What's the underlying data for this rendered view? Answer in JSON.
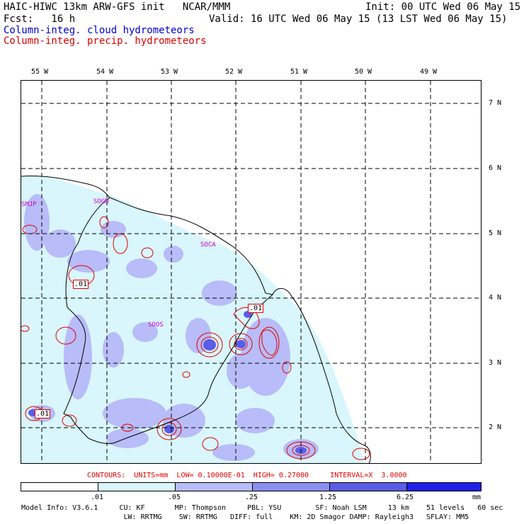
{
  "header": {
    "left_line1": "HAIC-HIWC 13km ARW-GFS init   NCAR/MMM",
    "left_line2": "Fcst:   16 h",
    "right_line1": "Init: 00 UTC Wed 06 May 15",
    "right_line2": "Valid: 16 UTC Wed 06 May 15 (13 LST Wed 06 May 15)"
  },
  "legend": {
    "cloud": "Column-integ. cloud hydrometeors",
    "precip": "Column-integ. precip. hydrometeors",
    "cloud_color": "#0000cc",
    "precip_color": "#e00000"
  },
  "map": {
    "lon_labels": [
      "55 W",
      "54 W",
      "53 W",
      "52 W",
      "51 W",
      "50 W",
      "49 W"
    ],
    "lat_labels": [
      "7 N",
      "6 N",
      "5 N",
      "4 N",
      "3 N",
      "2 N"
    ],
    "stations": [
      "SMJP",
      "SOGM",
      "SOCA",
      "SOOS"
    ],
    "station_color": "#cc00cc",
    "contour_labels": [
      ".01",
      ".01",
      ".01"
    ]
  },
  "contours_line": "CONTOURS:  UNITS=mm  LOW= 0.10000E-01  HIGH= 0.27000     INTERVAL=X  3.0000",
  "colorbar": {
    "ticks": [
      ".01",
      ".05",
      ".25",
      "1.25",
      "6.25"
    ],
    "units": "mm",
    "colors": [
      "#ffffff",
      "#d8f6fb",
      "#b8bcf8",
      "#8c8ff0",
      "#5a5ce8",
      "#2020e8"
    ]
  },
  "model_info": {
    "line1": "Model Info: V3.6.1     CU: KF       MP: Thompson     PBL: YSU        SF: Noah LSM     13 km    51 levels   60 sec",
    "line2": "                        LW: RRTMG    SW: RRTMG   DIFF: full    KM: 2D Smagor DAMP: Rayleigh3   SFLAY: MM5"
  }
}
